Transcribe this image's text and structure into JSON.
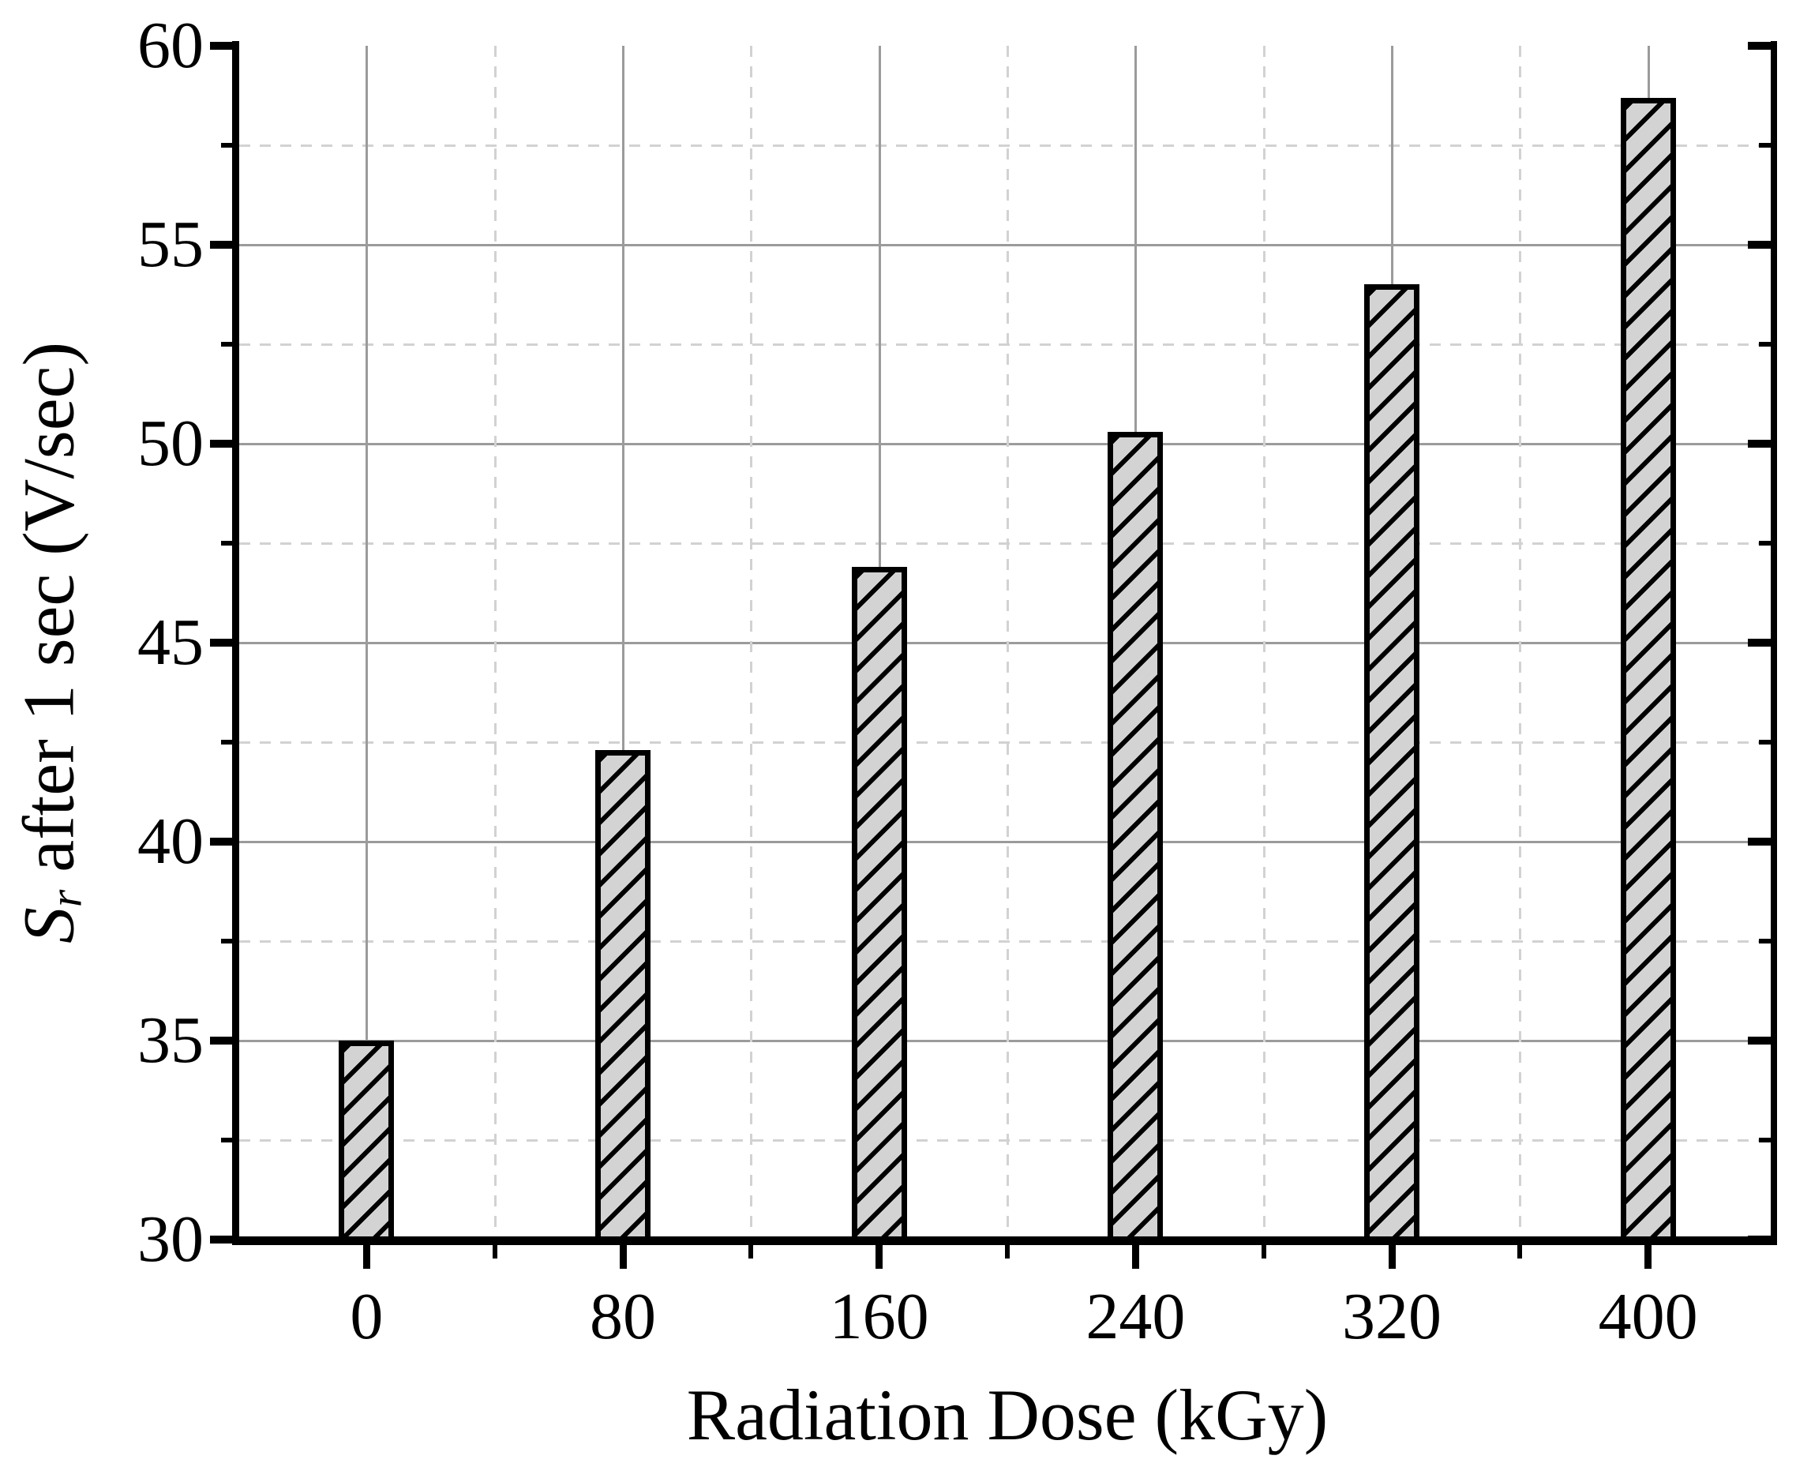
{
  "chart_data": {
    "type": "bar",
    "title": "",
    "xlabel": "Radiation Dose (kGy)",
    "ylabel": "Sr after 1 sec (V/sec)",
    "ylabel_parts": {
      "symbol": "S",
      "subscript": "r",
      "rest": "after 1 sec (V/sec)"
    },
    "categories": [
      "0",
      "80",
      "160",
      "240",
      "320",
      "400"
    ],
    "values": [
      35.0,
      42.3,
      46.9,
      50.3,
      54.0,
      58.7
    ],
    "y_tick_labels": [
      "30",
      "35",
      "40",
      "45",
      "50",
      "55",
      "60"
    ],
    "ylim": [
      30,
      60
    ],
    "y_major_step": 5,
    "y_minor_step": 2.5,
    "x_axis_unit": "kGy",
    "grid": {
      "major_style": "solid",
      "minor_style": "dashed",
      "major_color": "#9b9b9b",
      "minor_color": "#d2d2d2",
      "minor_x_position": "category midpoints"
    },
    "bar": {
      "fill": "#d3d3d3",
      "edge_color": "#000000",
      "hatch_color": "#000000",
      "hatch_direction": "forward-diagonal"
    },
    "axis_color": "#000000",
    "background": "#ffffff",
    "legend": "none"
  }
}
